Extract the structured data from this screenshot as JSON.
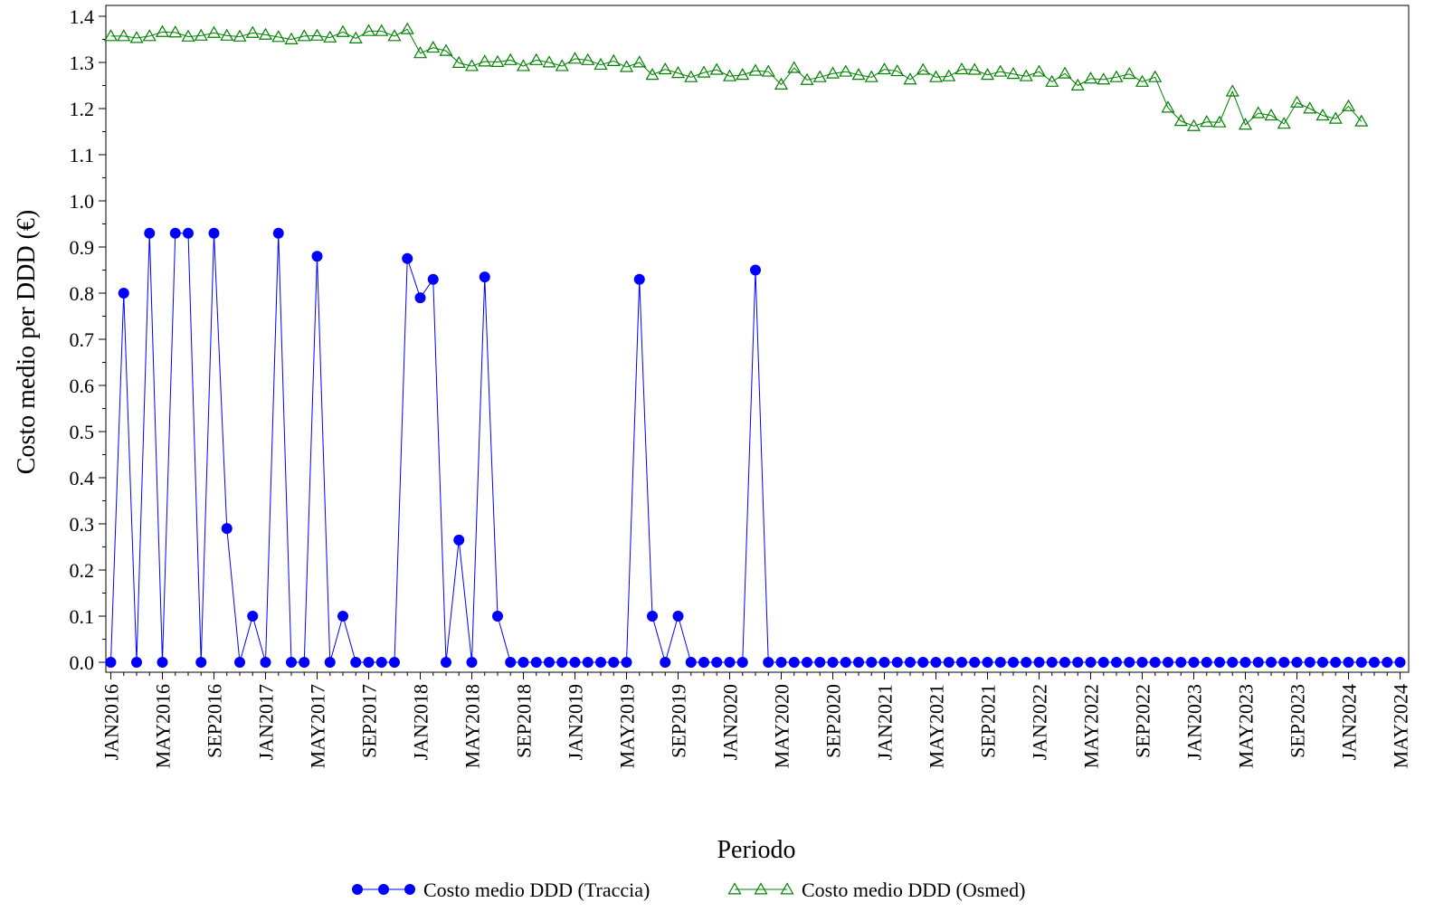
{
  "chart_data": {
    "type": "line",
    "title": "",
    "xlabel": "Periodo",
    "ylabel": "Costo medio per DDD (€)",
    "ylim": [
      0,
      1.4
    ],
    "yticks": [
      "0.0",
      "0.1",
      "0.2",
      "0.3",
      "0.4",
      "0.5",
      "0.6",
      "0.7",
      "0.8",
      "0.9",
      "1.0",
      "1.1",
      "1.2",
      "1.3",
      "1.4"
    ],
    "xticks": [
      "JAN2016",
      "MAY2016",
      "SEP2016",
      "JAN2017",
      "MAY2017",
      "SEP2017",
      "JAN2018",
      "MAY2018",
      "SEP2018",
      "JAN2019",
      "MAY2019",
      "SEP2019",
      "JAN2020",
      "MAY2020",
      "SEP2020",
      "JAN2021",
      "MAY2021",
      "SEP2021",
      "JAN2022",
      "MAY2022",
      "SEP2022",
      "JAN2023",
      "MAY2023",
      "SEP2023",
      "JAN2024",
      "MAY2024"
    ],
    "x_start": "JAN2016",
    "x_step": "1 month",
    "grid": false,
    "legend_position": "bottom-center",
    "series": [
      {
        "name": "Costo medio DDD (Traccia)",
        "color": "#0000FF",
        "marker": "filled-circle",
        "values": [
          0,
          0.8,
          0,
          0.93,
          0,
          0.93,
          0.93,
          0,
          0.93,
          0.29,
          0,
          0.1,
          0,
          0.93,
          0,
          0,
          0.88,
          0,
          0.1,
          0,
          0,
          0,
          0,
          0.875,
          0.79,
          0.83,
          0,
          0.265,
          0,
          0.835,
          0.1,
          0,
          0,
          0,
          0,
          0,
          0,
          0,
          0,
          0,
          0,
          0.83,
          0.1,
          0,
          0.1,
          0,
          0,
          0,
          0,
          0,
          0.85,
          0,
          0,
          0,
          0,
          0,
          0,
          0,
          0,
          0,
          0,
          0,
          0,
          0,
          0,
          0,
          0,
          0,
          0,
          0,
          0,
          0,
          0,
          0,
          0,
          0,
          0,
          0,
          0,
          0,
          0,
          0,
          0,
          0,
          0,
          0,
          0,
          0,
          0,
          0,
          0,
          0,
          0,
          0,
          0,
          0,
          0,
          0,
          0,
          0,
          0
        ]
      },
      {
        "name": "Costo medio DDD (Osmed)",
        "color": "#008000",
        "marker": "open-triangle",
        "values": [
          1.357,
          1.357,
          1.353,
          1.357,
          1.366,
          1.365,
          1.356,
          1.358,
          1.364,
          1.358,
          1.356,
          1.364,
          1.36,
          1.355,
          1.35,
          1.357,
          1.358,
          1.354,
          1.366,
          1.352,
          1.368,
          1.368,
          1.357,
          1.372,
          1.32,
          1.332,
          1.325,
          1.299,
          1.292,
          1.302,
          1.301,
          1.305,
          1.292,
          1.305,
          1.3,
          1.292,
          1.308,
          1.305,
          1.295,
          1.303,
          1.29,
          1.3,
          1.273,
          1.285,
          1.277,
          1.268,
          1.278,
          1.284,
          1.27,
          1.273,
          1.282,
          1.28,
          1.252,
          1.288,
          1.262,
          1.268,
          1.276,
          1.28,
          1.273,
          1.268,
          1.285,
          1.281,
          1.263,
          1.284,
          1.268,
          1.27,
          1.285,
          1.284,
          1.273,
          1.28,
          1.275,
          1.27,
          1.28,
          1.258,
          1.276,
          1.25,
          1.265,
          1.263,
          1.268,
          1.275,
          1.258,
          1.268,
          1.202,
          1.173,
          1.162,
          1.171,
          1.17,
          1.237,
          1.165,
          1.19,
          1.185,
          1.167,
          1.213,
          1.2,
          1.185,
          1.178,
          1.205,
          1.172
        ]
      }
    ]
  }
}
